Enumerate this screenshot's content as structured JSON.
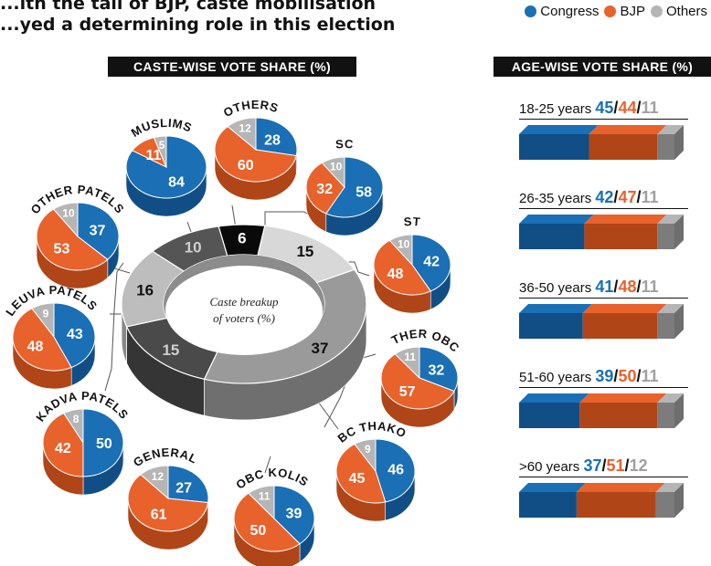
{
  "headline": {
    "line1": "...ith the tail of BJP, caste mobilisation",
    "line2": "...yed a determining role in this election"
  },
  "legend": [
    {
      "label": "Congress",
      "color": "#1a6fb5"
    },
    {
      "label": "BJP",
      "color": "#e8622c"
    },
    {
      "label": "Others",
      "color": "#b5b5b5"
    }
  ],
  "caste_banner": "CASTE-WISE VOTE SHARE (%)",
  "age_banner": "AGE-WISE VOTE SHARE (%)",
  "chart_data": [
    {
      "type": "donut",
      "title": "Caste breakup of voters (%)",
      "center_line1": "Caste breakup",
      "center_line2": "of voters (%)",
      "segments": [
        {
          "label": "6",
          "value": 6,
          "color": "#0a0a0a",
          "text_color": "#ffffff"
        },
        {
          "label": "15",
          "value": 15,
          "color": "#d8d8d8",
          "text_color": "#111111"
        },
        {
          "label": "37",
          "value": 37,
          "color": "#9a9a9a",
          "text_color": "#111111"
        },
        {
          "label": "15",
          "value": 15,
          "color": "#4a4a4a",
          "text_color": "#cfcfcf"
        },
        {
          "label": "16",
          "value": 16,
          "color": "#bdbdbd",
          "text_color": "#111111"
        },
        {
          "label": "10",
          "value": 10,
          "color": "#555555",
          "text_color": "#cfcfcf"
        }
      ]
    },
    {
      "type": "pie",
      "series": [
        "Congress",
        "BJP",
        "Others"
      ],
      "pies": [
        {
          "label": "MUSLIMS",
          "values": [
            84,
            11,
            5
          ]
        },
        {
          "label": "OTHERS",
          "values": [
            28,
            60,
            12
          ]
        },
        {
          "label": "SC",
          "values": [
            58,
            32,
            10
          ]
        },
        {
          "label": "ST",
          "values": [
            42,
            48,
            10
          ]
        },
        {
          "label": "OTHER OBCs",
          "values": [
            32,
            57,
            11
          ]
        },
        {
          "label": "OBC THAKORS",
          "values": [
            46,
            45,
            9
          ]
        },
        {
          "label": "OBC KOLIS",
          "values": [
            39,
            50,
            11
          ]
        },
        {
          "label": "GENERAL",
          "values": [
            27,
            61,
            12
          ]
        },
        {
          "label": "KADVA PATELS",
          "values": [
            50,
            42,
            8
          ]
        },
        {
          "label": "LEUVA PATELS",
          "values": [
            43,
            48,
            9
          ]
        },
        {
          "label": "OTHER PATELS",
          "values": [
            37,
            53,
            10
          ]
        }
      ]
    },
    {
      "type": "bar",
      "orientation": "horizontal-stacked",
      "series": [
        "Congress",
        "BJP",
        "Others"
      ],
      "categories": [
        "18-25 years",
        "26-35 years",
        "36-50 years",
        "51-60 years",
        ">60 years"
      ],
      "rows": [
        {
          "label": "18-25 years",
          "values": [
            45,
            44,
            11
          ]
        },
        {
          "label": "26-35 years",
          "values": [
            42,
            47,
            11
          ]
        },
        {
          "label": "36-50 years",
          "values": [
            41,
            48,
            11
          ]
        },
        {
          "label": "51-60 years",
          "values": [
            39,
            50,
            11
          ]
        },
        {
          "label": ">60 years",
          "values": [
            37,
            51,
            12
          ]
        }
      ]
    }
  ],
  "colors": {
    "congress": "#1a6fb5",
    "congress_dark": "#114e86",
    "bjp": "#e8622c",
    "bjp_dark": "#b04518",
    "others": "#b5b5b5",
    "others_dark": "#7c7c7c"
  }
}
